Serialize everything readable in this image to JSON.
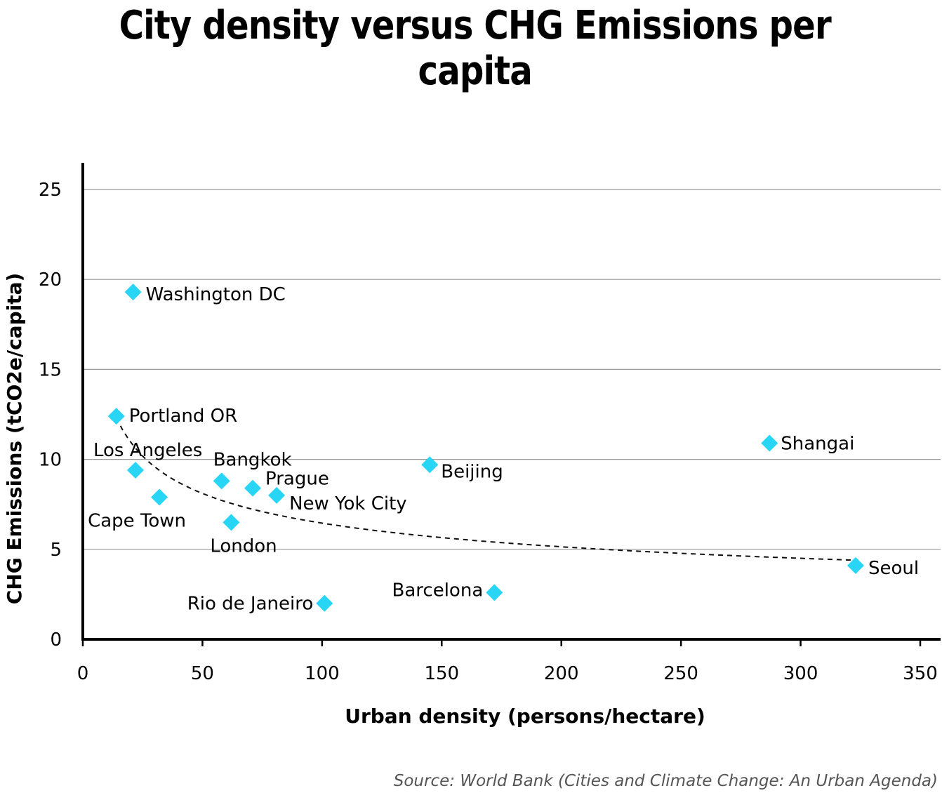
{
  "chart_data": {
    "type": "scatter",
    "title": "City density versus CHG Emissions per capita",
    "xlabel": "Urban density (persons/hectare)",
    "ylabel": "CHG Emissions (tCO2e/capita)",
    "xlim": [
      0,
      360
    ],
    "ylim": [
      0,
      26.5
    ],
    "xticks": [
      0,
      50,
      100,
      150,
      200,
      250,
      300,
      350
    ],
    "yticks": [
      0,
      5,
      10,
      15,
      20,
      25
    ],
    "grid": "horizontal",
    "marker_color": "#29d5f5",
    "trendline": {
      "style": "dashed",
      "kind": "power",
      "x_from": 14,
      "x_to": 323
    },
    "points": [
      {
        "label": "Washington DC",
        "x": 21,
        "y": 19.3
      },
      {
        "label": "Portland OR",
        "x": 14,
        "y": 12.4
      },
      {
        "label": "Los Angeles",
        "x": 22,
        "y": 9.4
      },
      {
        "label": "Cape Town",
        "x": 32,
        "y": 7.9
      },
      {
        "label": "Bangkok",
        "x": 58,
        "y": 8.8
      },
      {
        "label": "Prague",
        "x": 71,
        "y": 8.4
      },
      {
        "label": "New Yok City",
        "x": 81,
        "y": 8.0
      },
      {
        "label": "London",
        "x": 62,
        "y": 6.5
      },
      {
        "label": "Beijing",
        "x": 145,
        "y": 9.7
      },
      {
        "label": "Shangai",
        "x": 287,
        "y": 10.9
      },
      {
        "label": "Seoul",
        "x": 323,
        "y": 4.1
      },
      {
        "label": "Barcelona",
        "x": 172,
        "y": 2.6
      },
      {
        "label": "Rio de Janeiro",
        "x": 101,
        "y": 2.0
      }
    ]
  },
  "source": "Source: World Bank (Cities and Climate Change: An Urban Agenda)"
}
